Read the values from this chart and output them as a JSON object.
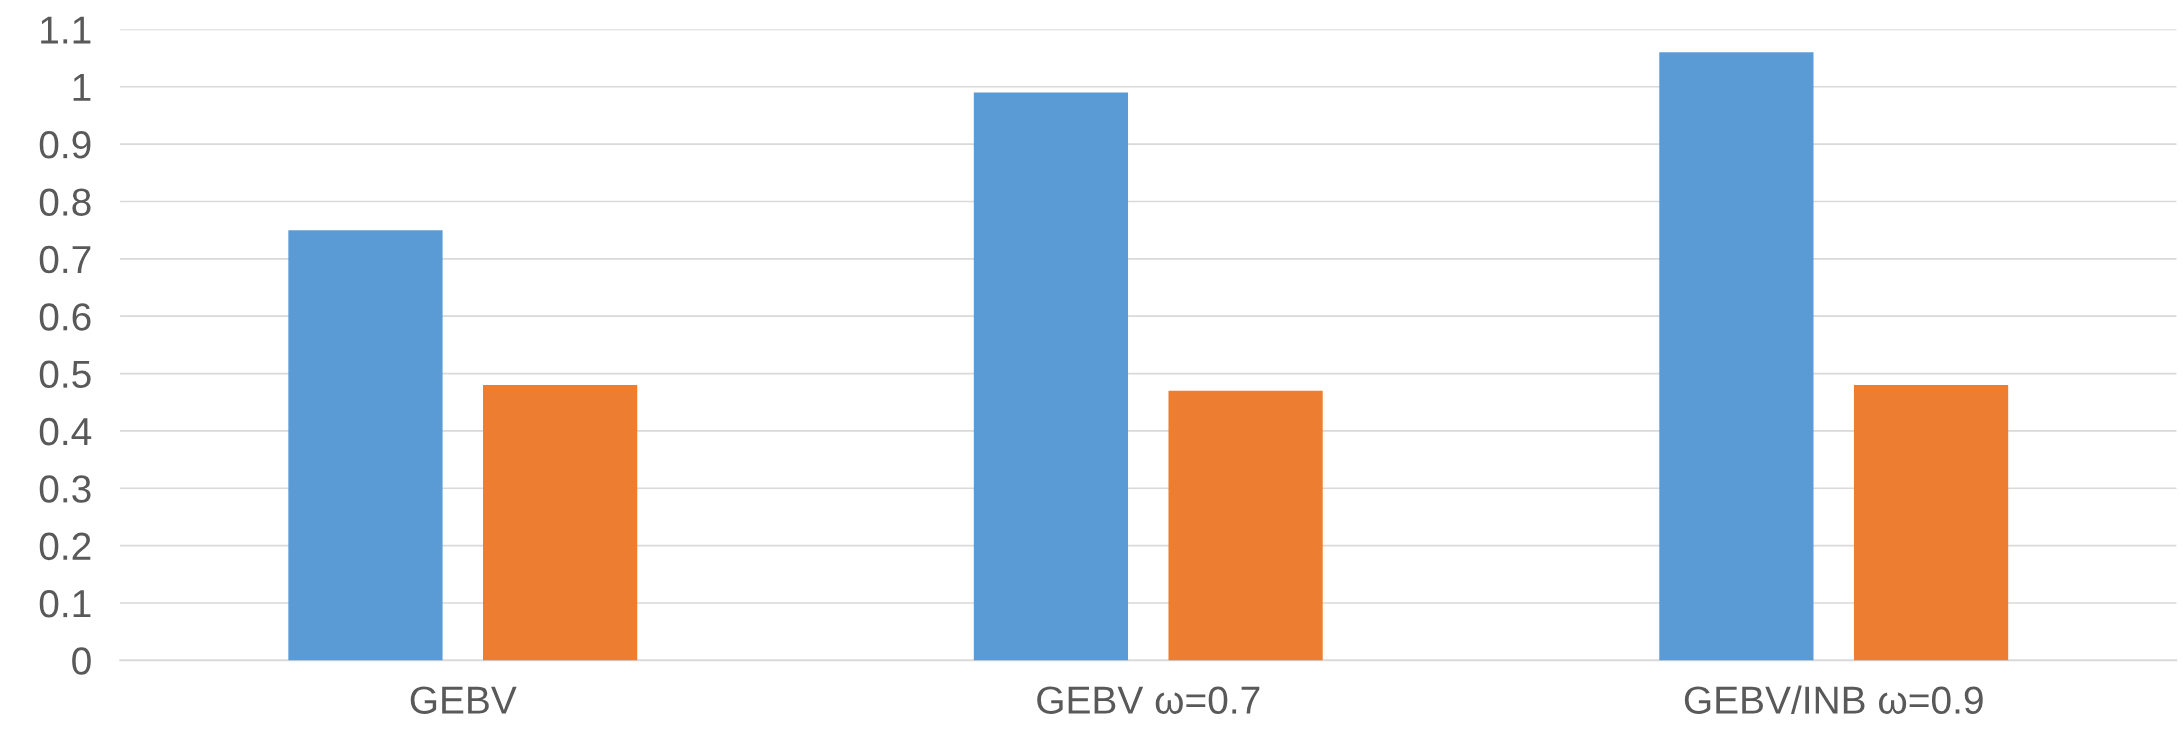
{
  "chart_data": {
    "type": "bar",
    "categories": [
      "GEBV",
      "GEBV ω=0.7",
      "GEBV/INB ω=0.9"
    ],
    "series": [
      {
        "color": "#5b9bd5",
        "values": [
          0.75,
          0.99,
          1.06
        ]
      },
      {
        "color": "#ed7d31",
        "values": [
          0.48,
          0.47,
          0.48
        ]
      }
    ],
    "ylim": [
      0,
      1.1
    ],
    "yticks": [
      0,
      0.1,
      0.2,
      0.3,
      0.4,
      0.5,
      0.6,
      0.7,
      0.8,
      0.9,
      1,
      1.1
    ],
    "grid": "y"
  }
}
